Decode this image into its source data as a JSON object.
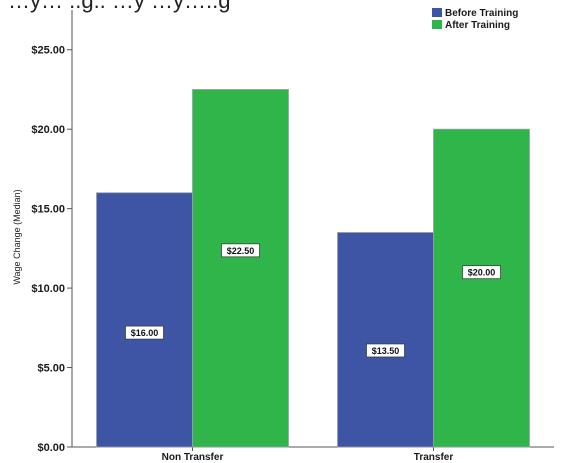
{
  "header_text": "…y… ..g.. …y …y…..g",
  "chart_data": {
    "type": "bar",
    "title": "",
    "xlabel": "",
    "ylabel": "Wage Change (Median)",
    "categories": [
      "Non Transfer",
      "Transfer"
    ],
    "series": [
      {
        "name": "Before Training",
        "values": [
          16.0,
          13.5
        ],
        "color": "#3e55a6"
      },
      {
        "name": "After Training",
        "values": [
          22.5,
          20.0
        ],
        "color": "#2fb54a"
      }
    ],
    "data_labels": [
      [
        "$16.00",
        "$13.50"
      ],
      [
        "$22.50",
        "$20.00"
      ]
    ],
    "ylim": [
      0,
      27.5
    ],
    "yticks": [
      0,
      5,
      10,
      15,
      20,
      25
    ],
    "ytick_labels": [
      "$0.00",
      "$5.00",
      "$10.00",
      "$15.00",
      "$20.00",
      "$25.00"
    ],
    "grid": false,
    "legend_position": "top-right"
  }
}
